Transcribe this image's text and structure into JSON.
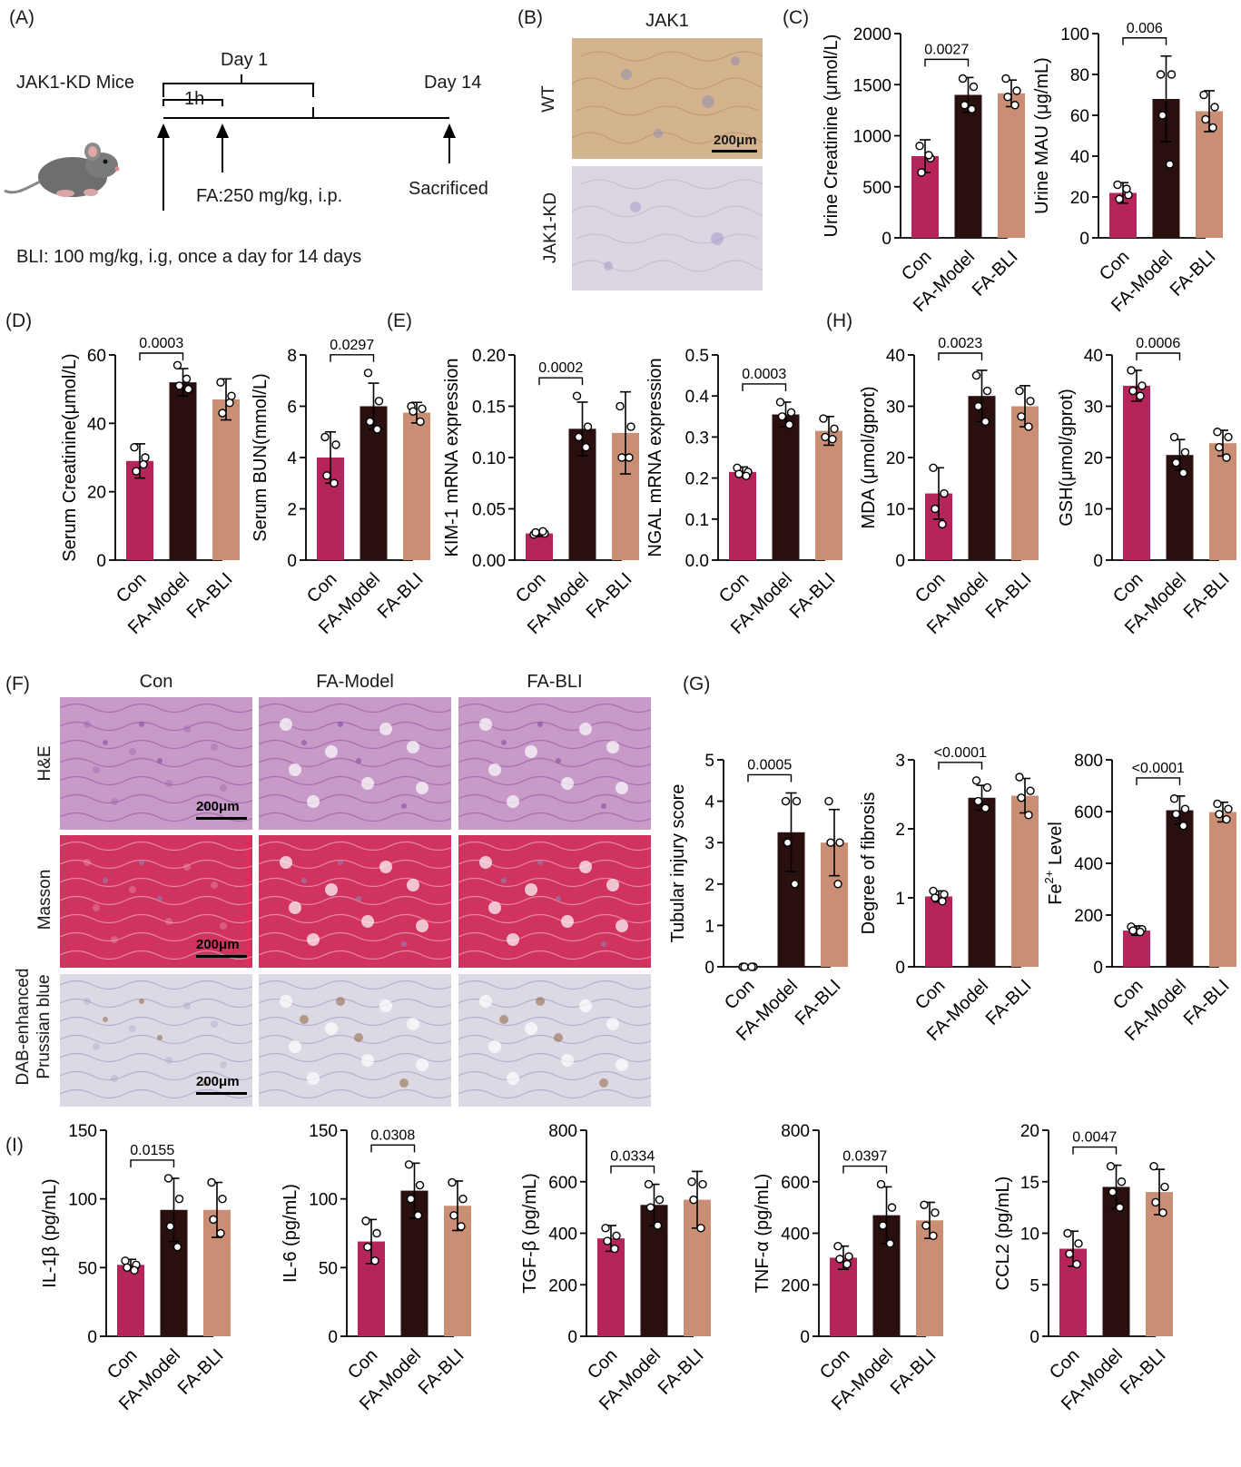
{
  "panels": {
    "A": "(A)",
    "B": "(B)",
    "C": "(C)",
    "D": "(D)",
    "E": "(E)",
    "F": "(F)",
    "G": "(G)",
    "H": "(H)",
    "I": "(I)"
  },
  "schematic": {
    "mouse_label": "JAK1-KD Mice",
    "day1": "Day 1",
    "hour": "1h",
    "day14": "Day 14",
    "fa_dose": "FA:250 mg/kg, i.p.",
    "sacrificed": "Sacrificed",
    "bli_dose": "BLI: 100 mg/kg, i.g, once a day for 14 days"
  },
  "panel_b": {
    "title": "JAK1",
    "rows": [
      "WT",
      "JAK1-KD"
    ],
    "scalebar": "200μm"
  },
  "panel_f": {
    "columns": [
      "Con",
      "FA-Model",
      "FA-BLI"
    ],
    "rows": [
      "H&E",
      "Masson",
      "DAB-enhanced",
      "Prussian blue"
    ],
    "scalebar": "200μm"
  },
  "colors": {
    "con": "#b5245a",
    "model": "#2a0f0f",
    "bli": "#c98e74",
    "he_bg": "#c89ac8",
    "masson_bg": "#d0335e",
    "dab_bg": "#dcd8e4",
    "jak_wt": "#d4b48e",
    "jak_kd": "#dcd6e2"
  },
  "chart_data": [
    {
      "id": "urine-creatinine",
      "type": "bar",
      "categories": [
        "Con",
        "FA-Model",
        "FA-BLI"
      ],
      "values": [
        800,
        1400,
        1415
      ],
      "errors": [
        160,
        170,
        130
      ],
      "points": [
        [
          900,
          780,
          640,
          810
        ],
        [
          1560,
          1480,
          1300,
          1260
        ],
        [
          1560,
          1440,
          1380,
          1300
        ]
      ],
      "ylabel": "Urine Creatinine (μmol/L)",
      "ylim": [
        0,
        2000
      ],
      "yticks": [
        0,
        500,
        1000,
        1500,
        2000
      ],
      "pvalue": "0.0027"
    },
    {
      "id": "urine-mau",
      "type": "bar",
      "categories": [
        "Con",
        "FA-Model",
        "FA-BLI"
      ],
      "values": [
        22,
        68,
        62
      ],
      "errors": [
        5,
        21,
        10
      ],
      "points": [
        [
          26,
          21,
          19,
          24
        ],
        [
          80,
          80,
          60,
          36
        ],
        [
          70,
          64,
          58,
          54
        ]
      ],
      "ylabel": "Urine MAU (μg/mL)",
      "ylim": [
        0,
        100
      ],
      "yticks": [
        0,
        20,
        40,
        60,
        80,
        100
      ],
      "pvalue": "0.006"
    },
    {
      "id": "serum-creatinine",
      "type": "bar",
      "categories": [
        "Con",
        "FA-Model",
        "FA-BLI"
      ],
      "values": [
        29,
        52,
        47
      ],
      "errors": [
        5,
        4,
        6
      ],
      "points": [
        [
          33,
          30,
          26,
          28
        ],
        [
          57,
          50,
          51,
          53
        ],
        [
          52,
          48,
          43,
          46
        ]
      ],
      "ylabel": "Serum Creatinine(μmol/L)",
      "ylim": [
        0,
        60
      ],
      "yticks": [
        0,
        20,
        40,
        60
      ],
      "pvalue": "0.0003"
    },
    {
      "id": "serum-bun",
      "type": "bar",
      "categories": [
        "Con",
        "FA-Model",
        "FA-BLI"
      ],
      "values": [
        4,
        6,
        5.75
      ],
      "errors": [
        1,
        0.9,
        0.4
      ],
      "points": [
        [
          4.8,
          4.5,
          3.3,
          3.0
        ],
        [
          7.3,
          6.2,
          5.4,
          5.1
        ],
        [
          6.0,
          5.9,
          5.8,
          5.4
        ]
      ],
      "ylabel": "Serum BUN(mmol/L)",
      "ylim": [
        0,
        8
      ],
      "yticks": [
        0,
        2,
        4,
        6,
        8
      ],
      "pvalue": "0.0297"
    },
    {
      "id": "kim1-mrna",
      "type": "bar",
      "categories": [
        "Con",
        "FA-Model",
        "FA-BLI"
      ],
      "values": [
        0.026,
        0.128,
        0.124
      ],
      "errors": [
        0.003,
        0.026,
        0.04
      ],
      "points": [
        [
          0.025,
          0.026,
          0.027,
          0.028
        ],
        [
          0.16,
          0.13,
          0.12,
          0.11
        ],
        [
          0.15,
          0.13,
          0.1,
          0.1
        ]
      ],
      "ylabel": "KIM-1 mRNA expression",
      "ylim": [
        0,
        0.2
      ],
      "yticks": [
        0.0,
        0.05,
        0.1,
        0.15,
        0.2
      ],
      "yticklabels": [
        "0.00",
        "0.05",
        "0.10",
        "0.15",
        "0.20"
      ],
      "pvalue": "0.0002"
    },
    {
      "id": "ngal-mrna",
      "type": "bar",
      "categories": [
        "Con",
        "FA-Model",
        "FA-BLI"
      ],
      "values": [
        0.215,
        0.355,
        0.315
      ],
      "errors": [
        0.012,
        0.03,
        0.035
      ],
      "points": [
        [
          0.225,
          0.215,
          0.21,
          0.205
        ],
        [
          0.385,
          0.36,
          0.35,
          0.33
        ],
        [
          0.345,
          0.32,
          0.3,
          0.295
        ]
      ],
      "ylabel": "NGAL  mRNA expression",
      "ylim": [
        0,
        0.5
      ],
      "yticks": [
        0.0,
        0.1,
        0.2,
        0.3,
        0.4,
        0.5
      ],
      "yticklabels": [
        "0.0",
        "0.1",
        "0.2",
        "0.3",
        "0.4",
        "0.5"
      ],
      "pvalue": "0.0003"
    },
    {
      "id": "mda",
      "type": "bar",
      "categories": [
        "Con",
        "FA-Model",
        "FA-BLI"
      ],
      "values": [
        13,
        32,
        30
      ],
      "errors": [
        5,
        5,
        4
      ],
      "points": [
        [
          18,
          13,
          10,
          7
        ],
        [
          36,
          33,
          30,
          27
        ],
        [
          33,
          31,
          28,
          26
        ]
      ],
      "ylabel": "MDA (μmol/gprot)",
      "ylim": [
        0,
        40
      ],
      "yticks": [
        0,
        10,
        20,
        30,
        40
      ],
      "pvalue": "0.0023"
    },
    {
      "id": "gsh",
      "type": "bar",
      "categories": [
        "Con",
        "FA-Model",
        "FA-BLI"
      ],
      "values": [
        34,
        20.5,
        22.8
      ],
      "errors": [
        3,
        3,
        2.5
      ],
      "points": [
        [
          37,
          34,
          33,
          32
        ],
        [
          24,
          21,
          19,
          17
        ],
        [
          25,
          24,
          22,
          20
        ]
      ],
      "ylabel": "GSH(μmol/gprot)",
      "ylim": [
        0,
        40
      ],
      "yticks": [
        0,
        10,
        20,
        30,
        40
      ],
      "pvalue": "0.0006"
    },
    {
      "id": "tubular-injury",
      "type": "bar",
      "categories": [
        "Con",
        "FA-Model",
        "FA-BLI"
      ],
      "values": [
        0,
        3.25,
        3.0
      ],
      "errors": [
        0,
        0.95,
        0.8
      ],
      "points": [
        [
          0,
          0,
          0,
          0
        ],
        [
          4,
          4,
          3,
          2
        ],
        [
          4,
          3,
          3,
          2
        ]
      ],
      "ylabel": "Tubular injury score",
      "ylim": [
        0,
        5
      ],
      "yticks": [
        0,
        1,
        2,
        3,
        4,
        5
      ],
      "pvalue": "0.0005"
    },
    {
      "id": "fibrosis",
      "type": "bar",
      "categories": [
        "Con",
        "FA-Model",
        "FA-BLI"
      ],
      "values": [
        1.02,
        2.45,
        2.48
      ],
      "errors": [
        0.08,
        0.18,
        0.25
      ],
      "points": [
        [
          1.1,
          1.05,
          1.0,
          0.95
        ],
        [
          2.7,
          2.6,
          2.4,
          2.3
        ],
        [
          2.75,
          2.55,
          2.45,
          2.2
        ]
      ],
      "ylabel": "Degree of fibrosis",
      "ylim": [
        0,
        3
      ],
      "yticks": [
        0,
        1,
        2,
        3
      ],
      "pvalue": "<0.0001"
    },
    {
      "id": "fe2-level",
      "type": "bar",
      "categories": [
        "Con",
        "FA-Model",
        "FA-BLI"
      ],
      "values": [
        140,
        605,
        598
      ],
      "errors": [
        18,
        55,
        38
      ],
      "points": [
        [
          155,
          145,
          140,
          135
        ],
        [
          650,
          610,
          590,
          545
        ],
        [
          630,
          610,
          590,
          570
        ]
      ],
      "ylabel": "Fe2+ Level",
      "ylabel_main": "Fe",
      "ylabel_sup": "2+",
      "ylabel_rest": " Level",
      "ylim": [
        0,
        800
      ],
      "yticks": [
        0,
        200,
        400,
        600,
        800
      ],
      "pvalue": "<0.0001"
    },
    {
      "id": "il1b",
      "type": "bar",
      "categories": [
        "Con",
        "FA-Model",
        "FA-BLI"
      ],
      "values": [
        52,
        92,
        92
      ],
      "errors": [
        4,
        23,
        20
      ],
      "points": [
        [
          55,
          52,
          50,
          48
        ],
        [
          115,
          100,
          80,
          65
        ],
        [
          112,
          100,
          85,
          75
        ]
      ],
      "ylabel": "IL-1β (pg/mL)",
      "ylim": [
        0,
        150
      ],
      "yticks": [
        0,
        50,
        100,
        150
      ],
      "pvalue": "0.0155"
    },
    {
      "id": "il6",
      "type": "bar",
      "categories": [
        "Con",
        "FA-Model",
        "FA-BLI"
      ],
      "values": [
        69,
        106,
        95
      ],
      "errors": [
        16,
        20,
        18
      ],
      "points": [
        [
          84,
          75,
          65,
          55
        ],
        [
          125,
          110,
          100,
          88
        ],
        [
          112,
          100,
          88,
          80
        ]
      ],
      "ylabel": "IL-6 (pg/mL)",
      "ylim": [
        0,
        150
      ],
      "yticks": [
        0,
        50,
        100,
        150
      ],
      "pvalue": "0.0308"
    },
    {
      "id": "tgfb",
      "type": "bar",
      "categories": [
        "Con",
        "FA-Model",
        "FA-BLI"
      ],
      "values": [
        380,
        510,
        530
      ],
      "errors": [
        50,
        80,
        110
      ],
      "points": [
        [
          420,
          390,
          370,
          340
        ],
        [
          590,
          530,
          500,
          430
        ],
        [
          600,
          590,
          530,
          420
        ]
      ],
      "ylabel": "TGF-β (pg/mL)",
      "ylim": [
        0,
        800
      ],
      "yticks": [
        0,
        200,
        400,
        600,
        800
      ],
      "pvalue": "0.0334"
    },
    {
      "id": "tnfa",
      "type": "bar",
      "categories": [
        "Con",
        "FA-Model",
        "FA-BLI"
      ],
      "values": [
        305,
        470,
        450
      ],
      "errors": [
        45,
        110,
        70
      ],
      "points": [
        [
          350,
          310,
          300,
          280
        ],
        [
          590,
          500,
          430,
          360
        ],
        [
          510,
          480,
          430,
          390
        ]
      ],
      "ylabel": "TNF-α (pg/mL)",
      "ylim": [
        0,
        800
      ],
      "yticks": [
        0,
        200,
        400,
        600,
        800
      ],
      "pvalue": "0.0397"
    },
    {
      "id": "ccl2",
      "type": "bar",
      "categories": [
        "Con",
        "FA-Model",
        "FA-BLI"
      ],
      "values": [
        8.5,
        14.5,
        14.0
      ],
      "errors": [
        1.7,
        2.1,
        2.2
      ],
      "points": [
        [
          10,
          9,
          8,
          7
        ],
        [
          16.5,
          15,
          14,
          12.5
        ],
        [
          16.5,
          14.5,
          13,
          12
        ]
      ],
      "ylabel": "CCL2 (pg/mL)",
      "ylim": [
        0,
        20
      ],
      "yticks": [
        0,
        5,
        10,
        15,
        20
      ],
      "pvalue": "0.0047"
    }
  ]
}
